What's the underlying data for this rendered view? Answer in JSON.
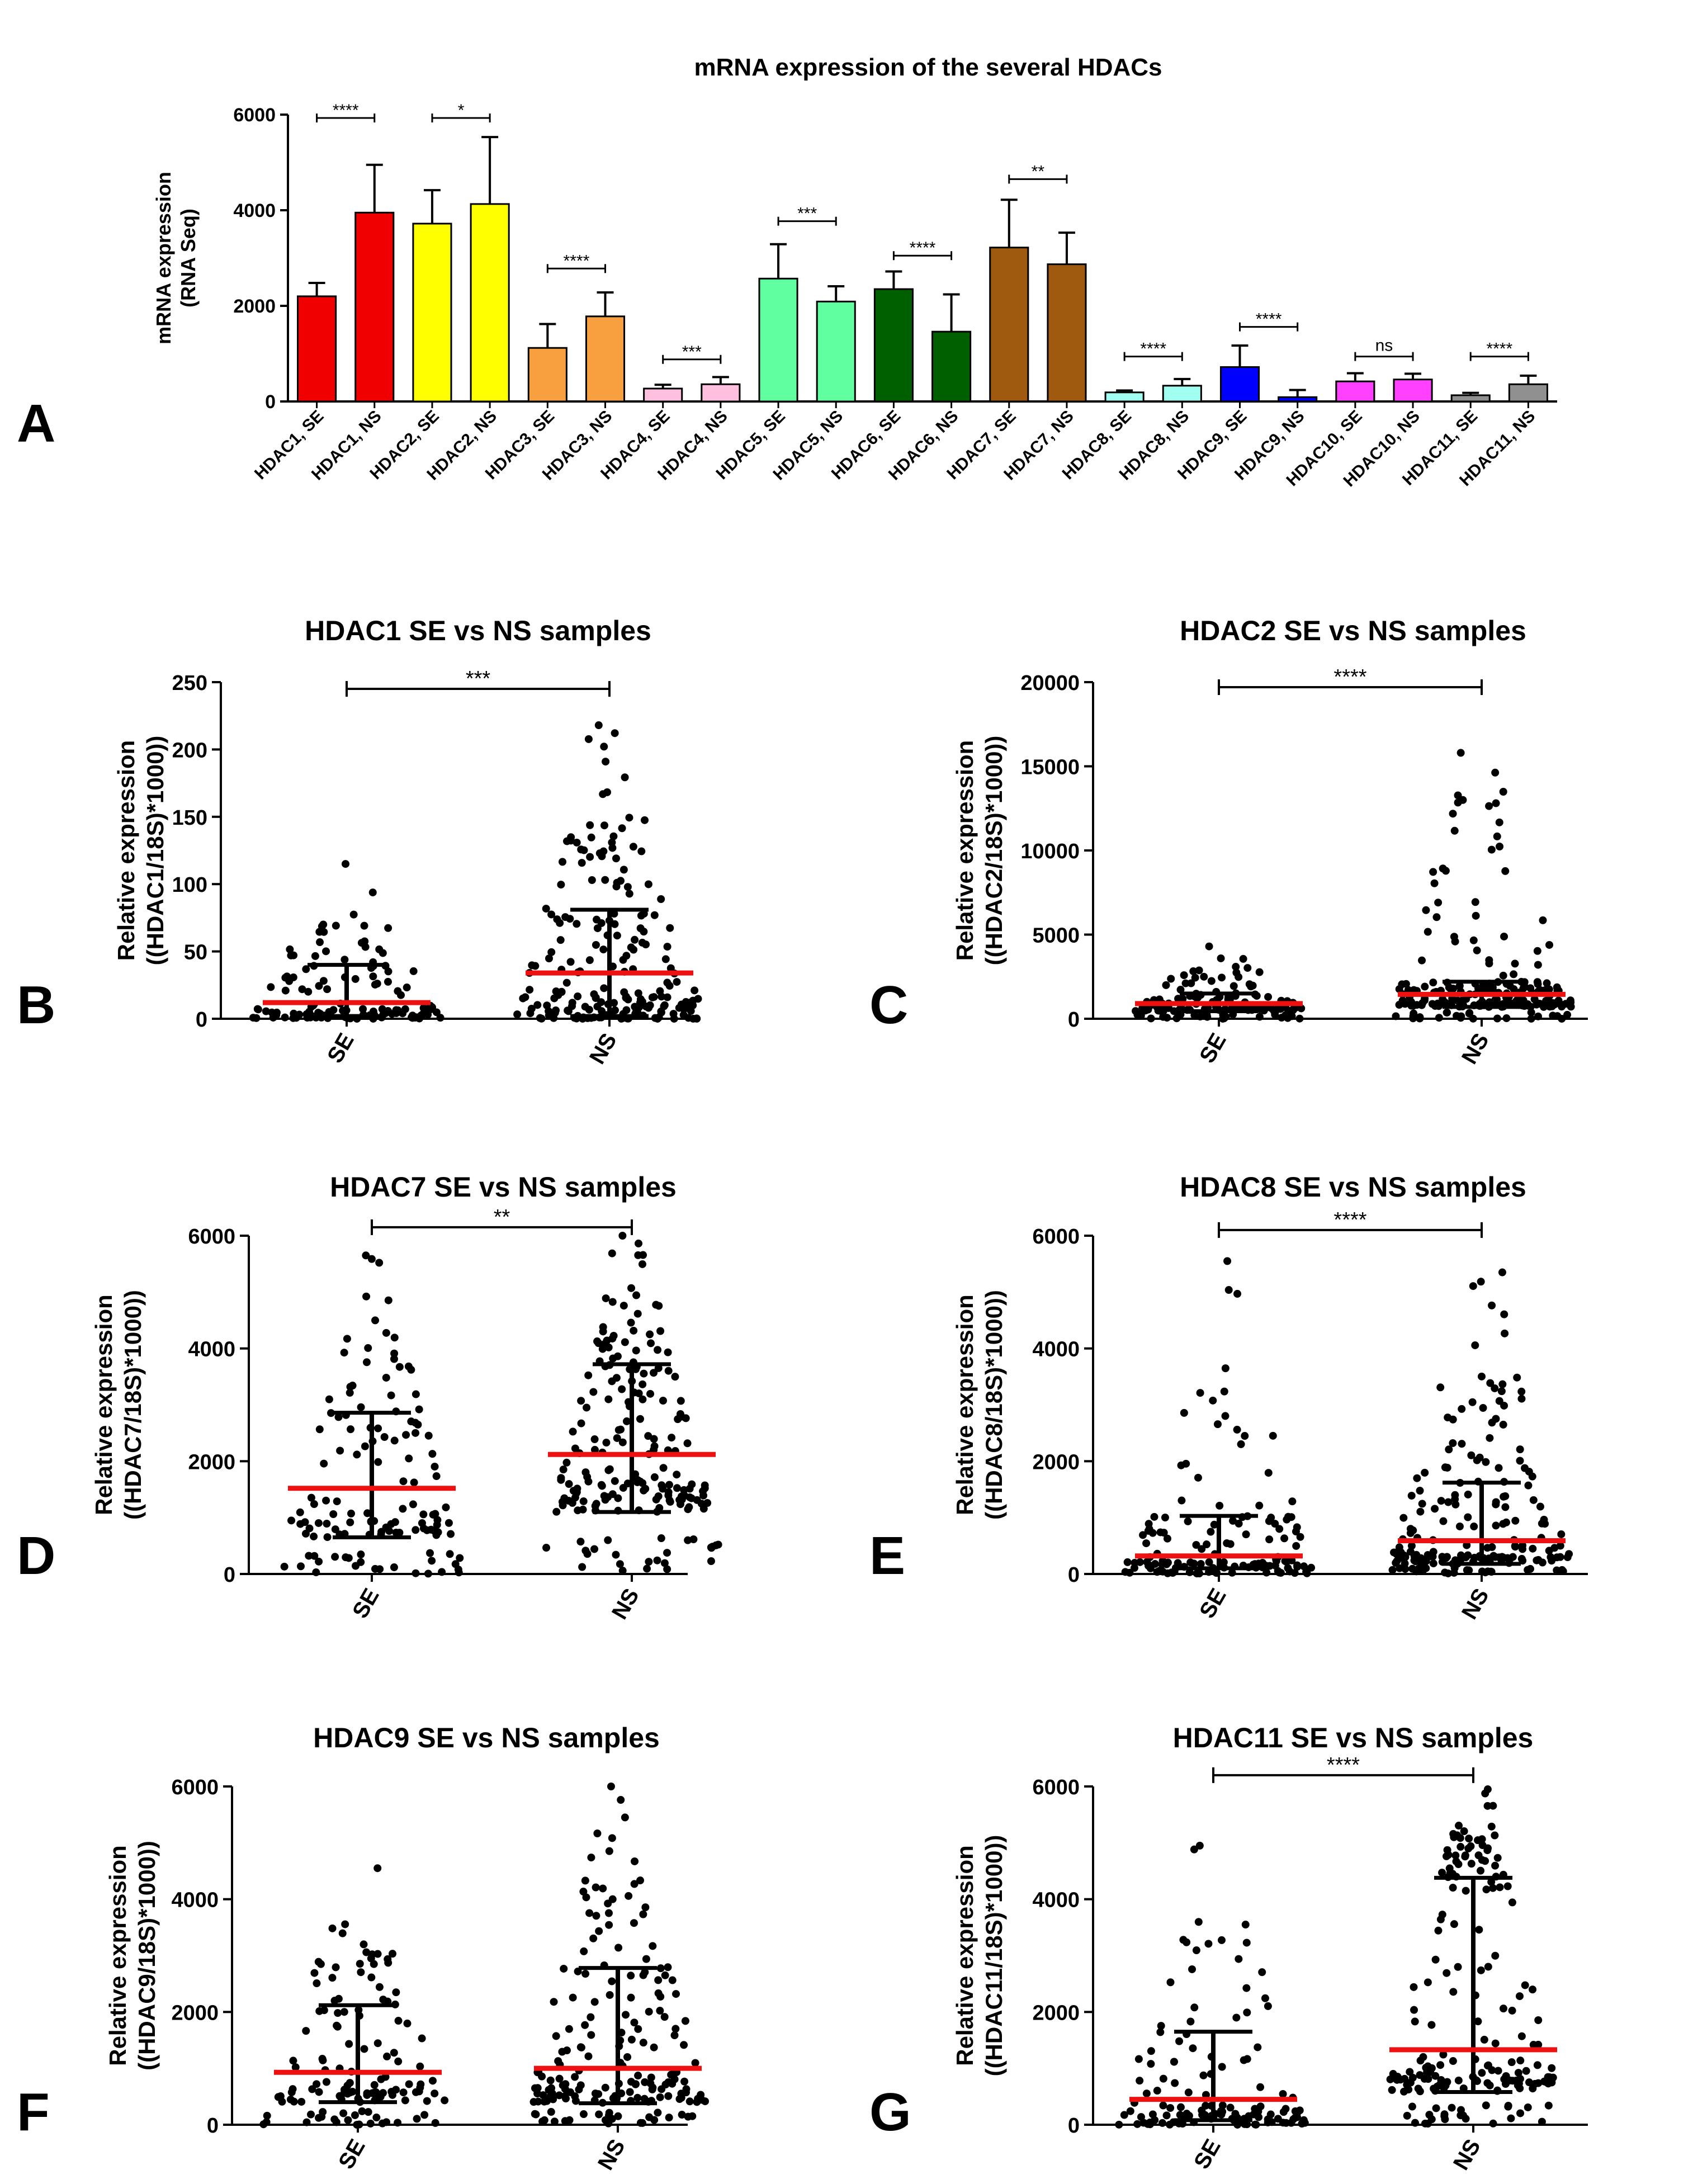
{
  "panel_letters": [
    "A",
    "B",
    "C",
    "D",
    "E",
    "F",
    "G"
  ],
  "chart_data": [
    {
      "panel": "A",
      "type": "bar",
      "title": "mRNA expression of the several HDACs",
      "ylabel_lines": [
        "mRNA expression",
        "(RNA Seq)"
      ],
      "xlabel": "",
      "ylim": [
        0,
        6000
      ],
      "yticks": [
        0,
        2000,
        4000,
        6000
      ],
      "categories": [
        "HDAC1, SE",
        "HDAC1, NS",
        "HDAC2, SE",
        "HDAC2, NS",
        "HDAC3, SE",
        "HDAC3, NS",
        "HDAC4, SE",
        "HDAC4, NS",
        "HDAC5, SE",
        "HDAC5, NS",
        "HDAC6, SE",
        "HDAC6, NS",
        "HDAC7, SE",
        "HDAC7, NS",
        "HDAC8, SE",
        "HDAC8, NS",
        "HDAC9, SE",
        "HDAC9, NS",
        "HDAC10, SE",
        "HDAC10, NS",
        "HDAC11, SE",
        "HDAC11, NS"
      ],
      "values": [
        2200,
        3950,
        3720,
        4130,
        1120,
        1780,
        270,
        360,
        2570,
        2090,
        2350,
        1460,
        3220,
        2870,
        190,
        330,
        720,
        90,
        420,
        460,
        130,
        360
      ],
      "errors": [
        280,
        1000,
        700,
        1400,
        500,
        500,
        80,
        150,
        720,
        320,
        370,
        780,
        1000,
        660,
        40,
        140,
        450,
        150,
        170,
        120,
        50,
        180
      ],
      "colors": [
        "#f00000",
        "#f00000",
        "#ffff00",
        "#ffff00",
        "#f8a040",
        "#f8a040",
        "#ffc0e0",
        "#ffc0e0",
        "#60ffa0",
        "#60ffa0",
        "#006000",
        "#006000",
        "#a05a10",
        "#a05a10",
        "#a0fff0",
        "#a0fff0",
        "#0000ff",
        "#0000ff",
        "#ff40ff",
        "#ff40ff",
        "#909090",
        "#909090"
      ],
      "significance": [
        {
          "pair": [
            0,
            1
          ],
          "label": "****",
          "y": 5930
        },
        {
          "pair": [
            2,
            3
          ],
          "label": "*",
          "y": 5930
        },
        {
          "pair": [
            4,
            5
          ],
          "label": "****",
          "y": 2780
        },
        {
          "pair": [
            6,
            7
          ],
          "label": "***",
          "y": 880
        },
        {
          "pair": [
            8,
            9
          ],
          "label": "***",
          "y": 3770
        },
        {
          "pair": [
            10,
            11
          ],
          "label": "****",
          "y": 3050
        },
        {
          "pair": [
            12,
            13
          ],
          "label": "**",
          "y": 4650
        },
        {
          "pair": [
            14,
            15
          ],
          "label": "****",
          "y": 940
        },
        {
          "pair": [
            16,
            17
          ],
          "label": "****",
          "y": 1560
        },
        {
          "pair": [
            18,
            19
          ],
          "label": "ns",
          "y": 940
        },
        {
          "pair": [
            20,
            21
          ],
          "label": "****",
          "y": 940
        }
      ]
    },
    {
      "panel": "B",
      "type": "scatter",
      "title": "HDAC1 SE vs NS samples",
      "ylabel_lines": [
        "Relative expression",
        "((HDAC1/18S)*1000))"
      ],
      "categories": [
        "SE",
        "NS"
      ],
      "ylim": [
        0,
        250
      ],
      "yticks": [
        0,
        50,
        100,
        150,
        200,
        250
      ],
      "groups": [
        {
          "name": "SE",
          "median": 12,
          "q1": 2,
          "q3": 40,
          "n": 130,
          "max": 115
        },
        {
          "name": "NS",
          "median": 34,
          "q1": 2,
          "q3": 81,
          "n": 200,
          "max": 218
        }
      ],
      "significance": {
        "label": "***",
        "y": 245
      }
    },
    {
      "panel": "C",
      "type": "scatter",
      "title": "HDAC2 SE vs NS samples",
      "ylabel_lines": [
        "Relative expression",
        "((HDAC2/18S)*1000))"
      ],
      "categories": [
        "SE",
        "NS"
      ],
      "ylim": [
        0,
        20000
      ],
      "yticks": [
        0,
        5000,
        10000,
        15000,
        20000
      ],
      "groups": [
        {
          "name": "SE",
          "median": 900,
          "q1": 450,
          "q3": 1500,
          "n": 140,
          "max": 4300
        },
        {
          "name": "NS",
          "median": 1450,
          "q1": 700,
          "q3": 2200,
          "n": 210,
          "max": 15800
        }
      ],
      "significance": {
        "label": "****",
        "y": 19700
      }
    },
    {
      "panel": "D",
      "type": "scatter",
      "title": "HDAC7 SE vs NS samples",
      "ylabel_lines": [
        "Relative expression",
        "((HDAC7/18S)*1000))"
      ],
      "categories": [
        "SE",
        "NS"
      ],
      "ylim": [
        0,
        6000
      ],
      "yticks": [
        0,
        2000,
        4000,
        6000
      ],
      "groups": [
        {
          "name": "SE",
          "median": 1520,
          "q1": 650,
          "q3": 2860,
          "n": 130,
          "max": 5650
        },
        {
          "name": "NS",
          "median": 2120,
          "q1": 1100,
          "q3": 3720,
          "n": 200,
          "max": 6000
        }
      ],
      "significance": {
        "label": "**",
        "y": 6150
      }
    },
    {
      "panel": "E",
      "type": "scatter",
      "title": "HDAC8 SE vs NS samples",
      "ylabel_lines": [
        "Relative expression",
        "((HDAC8/18S)*1000))"
      ],
      "categories": [
        "SE",
        "NS"
      ],
      "ylim": [
        0,
        6000
      ],
      "yticks": [
        0,
        2000,
        4000,
        6000
      ],
      "groups": [
        {
          "name": "SE",
          "median": 320,
          "q1": 100,
          "q3": 1030,
          "n": 140,
          "max": 5550
        },
        {
          "name": "NS",
          "median": 590,
          "q1": 180,
          "q3": 1620,
          "n": 200,
          "max": 5350
        }
      ],
      "significance": {
        "label": "****",
        "y": 6100
      }
    },
    {
      "panel": "F",
      "type": "scatter",
      "title": "HDAC9 SE vs NS samples",
      "ylabel_lines": [
        "Relative expression",
        "((HDAC9/18S)*1000))"
      ],
      "categories": [
        "SE",
        "NS"
      ],
      "ylim": [
        0,
        6000
      ],
      "yticks": [
        0,
        2000,
        4000,
        6000
      ],
      "groups": [
        {
          "name": "SE",
          "median": 930,
          "q1": 400,
          "q3": 2120,
          "n": 130,
          "max": 4550
        },
        {
          "name": "NS",
          "median": 1000,
          "q1": 380,
          "q3": 2780,
          "n": 190,
          "max": 6000
        }
      ],
      "significance": null
    },
    {
      "panel": "G",
      "type": "scatter",
      "title": "HDAC11 SE vs NS samples",
      "ylabel_lines": [
        "Relative expression",
        "((HDAC11/18S)*1000))"
      ],
      "categories": [
        "SE",
        "NS"
      ],
      "ylim": [
        0,
        6000
      ],
      "yticks": [
        0,
        2000,
        4000,
        6000
      ],
      "groups": [
        {
          "name": "SE",
          "median": 450,
          "q1": 80,
          "q3": 1650,
          "n": 130,
          "max": 4950
        },
        {
          "name": "NS",
          "median": 1330,
          "q1": 580,
          "q3": 4380,
          "n": 190,
          "max": 5950
        }
      ],
      "significance": {
        "label": "****",
        "y": 6200
      }
    }
  ]
}
